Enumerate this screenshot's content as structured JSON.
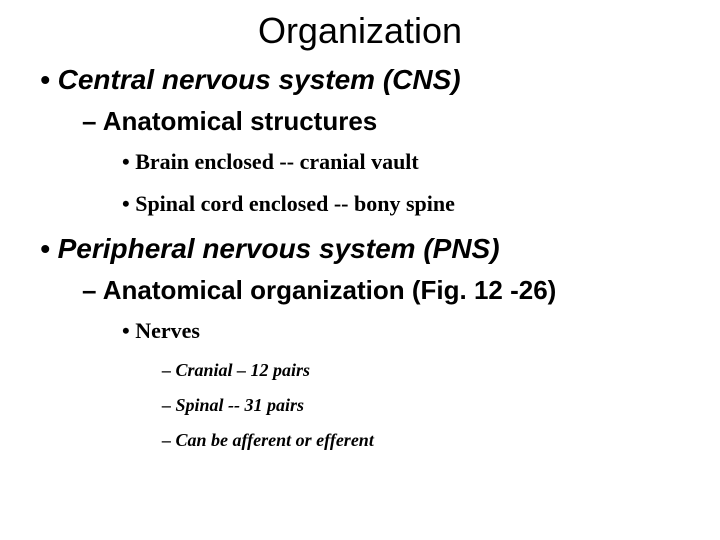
{
  "title": "Organization",
  "sections": [
    {
      "label": "Central nervous system (CNS)",
      "sub": {
        "label": "Anatomical structures",
        "items": [
          "Brain enclosed -- cranial vault",
          "Spinal cord enclosed -- bony spine"
        ]
      }
    },
    {
      "label": "Peripheral nervous system (PNS)",
      "sub": {
        "label": "Anatomical organization (Fig. 12 -26)",
        "items": [
          "Nerves"
        ],
        "subitems": [
          "Cranial – 12 pairs",
          "Spinal --  31 pairs",
          "Can be afferent or efferent"
        ]
      }
    }
  ],
  "style": {
    "background_color": "#ffffff",
    "text_color": "#000000",
    "title_fontsize": 36,
    "l1_fontsize": 28,
    "l2_fontsize": 26,
    "l3_fontsize": 22,
    "l4_fontsize": 18,
    "sans_font": "Arial",
    "serif_font": "Times New Roman"
  }
}
